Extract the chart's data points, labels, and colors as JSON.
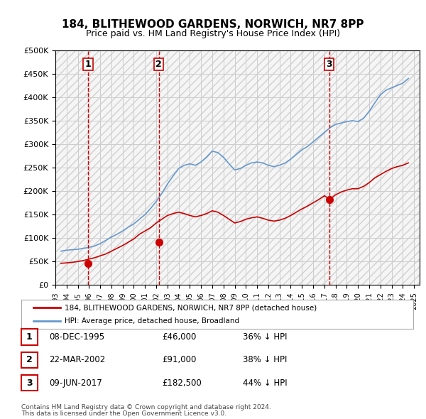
{
  "title": "184, BLITHEWOOD GARDENS, NORWICH, NR7 8PP",
  "subtitle": "Price paid vs. HM Land Registry's House Price Index (HPI)",
  "legend_line1": "184, BLITHEWOOD GARDENS, NORWICH, NR7 8PP (detached house)",
  "legend_line2": "HPI: Average price, detached house, Broadland",
  "footer1": "Contains HM Land Registry data © Crown copyright and database right 2024.",
  "footer2": "This data is licensed under the Open Government Licence v3.0.",
  "transactions": [
    {
      "num": 1,
      "date": "08-DEC-1995",
      "price": 46000,
      "pct": "36% ↓ HPI",
      "x_year": 1995.92
    },
    {
      "num": 2,
      "date": "22-MAR-2002",
      "price": 91000,
      "pct": "38% ↓ HPI",
      "x_year": 2002.22
    },
    {
      "num": 3,
      "date": "09-JUN-2017",
      "price": 182500,
      "pct": "44% ↓ HPI",
      "x_year": 2017.44
    }
  ],
  "price_line_color": "#cc0000",
  "hpi_line_color": "#6699cc",
  "transaction_marker_color": "#cc0000",
  "vline_color": "#cc0000",
  "grid_color": "#cccccc",
  "bg_color": "#ffffff",
  "plot_bg_color": "#f5f5f5",
  "ylim": [
    0,
    500000
  ],
  "yticks": [
    0,
    50000,
    100000,
    150000,
    200000,
    250000,
    300000,
    350000,
    400000,
    450000,
    500000
  ],
  "xmin": 1993,
  "xmax": 2025.5,
  "xtick_years": [
    1993,
    1994,
    1995,
    1996,
    1997,
    1998,
    1999,
    2000,
    2001,
    2002,
    2003,
    2004,
    2005,
    2006,
    2007,
    2008,
    2009,
    2010,
    2011,
    2012,
    2013,
    2014,
    2015,
    2016,
    2017,
    2018,
    2019,
    2020,
    2021,
    2022,
    2023,
    2024,
    2025
  ],
  "hpi_data": {
    "years": [
      1993.5,
      1994.0,
      1994.5,
      1995.0,
      1995.5,
      1996.0,
      1996.5,
      1997.0,
      1997.5,
      1998.0,
      1998.5,
      1999.0,
      1999.5,
      2000.0,
      2000.5,
      2001.0,
      2001.5,
      2002.0,
      2002.5,
      2003.0,
      2003.5,
      2004.0,
      2004.5,
      2005.0,
      2005.5,
      2006.0,
      2006.5,
      2007.0,
      2007.5,
      2008.0,
      2008.5,
      2009.0,
      2009.5,
      2010.0,
      2010.5,
      2011.0,
      2011.5,
      2012.0,
      2012.5,
      2013.0,
      2013.5,
      2014.0,
      2014.5,
      2015.0,
      2015.5,
      2016.0,
      2016.5,
      2017.0,
      2017.5,
      2018.0,
      2018.5,
      2019.0,
      2019.5,
      2020.0,
      2020.5,
      2021.0,
      2021.5,
      2022.0,
      2022.5,
      2023.0,
      2023.5,
      2024.0,
      2024.5
    ],
    "values": [
      72000,
      74000,
      75000,
      76000,
      78000,
      80000,
      83000,
      88000,
      95000,
      102000,
      108000,
      115000,
      123000,
      130000,
      140000,
      150000,
      163000,
      178000,
      195000,
      215000,
      232000,
      248000,
      255000,
      258000,
      255000,
      262000,
      272000,
      285000,
      282000,
      272000,
      258000,
      245000,
      248000,
      255000,
      260000,
      262000,
      260000,
      255000,
      252000,
      255000,
      260000,
      268000,
      278000,
      288000,
      295000,
      305000,
      315000,
      325000,
      335000,
      342000,
      345000,
      348000,
      350000,
      348000,
      355000,
      370000,
      388000,
      405000,
      415000,
      420000,
      425000,
      430000,
      440000
    ]
  },
  "price_data": {
    "years": [
      1993.5,
      1994.0,
      1994.5,
      1995.0,
      1995.5,
      1996.0,
      1996.5,
      1997.0,
      1997.5,
      1998.0,
      1998.5,
      1999.0,
      1999.5,
      2000.0,
      2000.5,
      2001.0,
      2001.5,
      2002.0,
      2002.5,
      2003.0,
      2003.5,
      2004.0,
      2004.5,
      2005.0,
      2005.5,
      2006.0,
      2006.5,
      2007.0,
      2007.5,
      2008.0,
      2008.5,
      2009.0,
      2009.5,
      2010.0,
      2010.5,
      2011.0,
      2011.5,
      2012.0,
      2012.5,
      2013.0,
      2013.5,
      2014.0,
      2014.5,
      2015.0,
      2015.5,
      2016.0,
      2016.5,
      2017.0,
      2017.5,
      2018.0,
      2018.5,
      2019.0,
      2019.5,
      2020.0,
      2020.5,
      2021.0,
      2021.5,
      2022.0,
      2022.5,
      2023.0,
      2023.5,
      2024.0,
      2024.5
    ],
    "values": [
      46000,
      47000,
      48000,
      50000,
      52000,
      55000,
      58000,
      62000,
      66000,
      72000,
      78000,
      84000,
      91000,
      98000,
      108000,
      115000,
      122000,
      132000,
      140000,
      148000,
      152000,
      155000,
      152000,
      148000,
      145000,
      148000,
      152000,
      158000,
      155000,
      148000,
      140000,
      132000,
      135000,
      140000,
      143000,
      145000,
      142000,
      138000,
      136000,
      138000,
      142000,
      148000,
      155000,
      162000,
      168000,
      175000,
      182000,
      190000,
      182500,
      192000,
      198000,
      202000,
      205000,
      205000,
      210000,
      218000,
      228000,
      235000,
      242000,
      248000,
      252000,
      255000,
      260000
    ]
  }
}
